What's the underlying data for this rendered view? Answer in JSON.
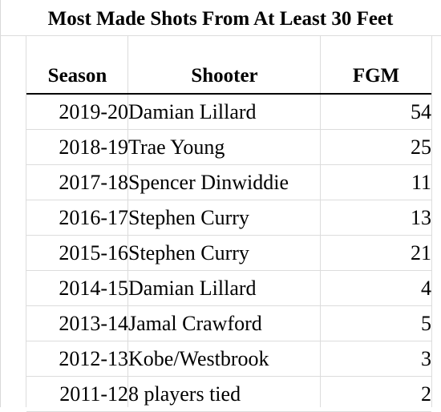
{
  "title": "Most Made Shots From At Least 30 Feet",
  "columns": {
    "season": "Season",
    "shooter": "Shooter",
    "fgm": "FGM"
  },
  "rows": [
    {
      "season": "2019-20",
      "shooter": "Damian Lillard",
      "fgm": "54"
    },
    {
      "season": "2018-19",
      "shooter": "Trae Young",
      "fgm": "25"
    },
    {
      "season": "2017-18",
      "shooter": "Spencer Dinwiddie",
      "fgm": "11"
    },
    {
      "season": "2016-17",
      "shooter": "Stephen Curry",
      "fgm": "13"
    },
    {
      "season": "2015-16",
      "shooter": "Stephen Curry",
      "fgm": "21"
    },
    {
      "season": "2014-15",
      "shooter": "Damian Lillard",
      "fgm": "4"
    },
    {
      "season": "2013-14",
      "shooter": "Jamal Crawford",
      "fgm": "5"
    },
    {
      "season": "2012-13",
      "shooter": "Kobe/Westbrook",
      "fgm": "3"
    },
    {
      "season": "2011-12",
      "shooter": "8 players tied",
      "fgm": "2"
    }
  ]
}
